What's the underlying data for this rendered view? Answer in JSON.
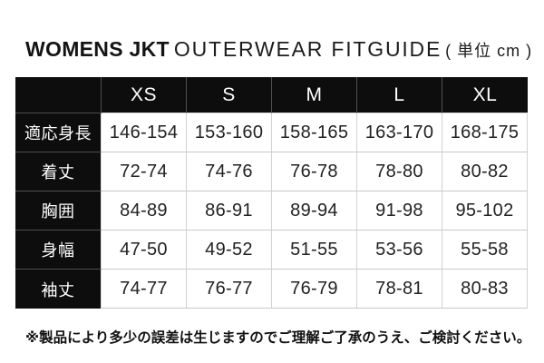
{
  "title": {
    "brand": "WOMENS JKT",
    "product": "OUTERWEAR FITGUIDE",
    "unit": "( 単位 cm )"
  },
  "chart_data": {
    "type": "table",
    "unit": "cm",
    "columns": [
      "XS",
      "S",
      "M",
      "L",
      "XL"
    ],
    "rows": [
      {
        "label": "適応身長",
        "values": [
          "146-154",
          "153-160",
          "158-165",
          "163-170",
          "168-175"
        ]
      },
      {
        "label": "着丈",
        "values": [
          "72-74",
          "74-76",
          "76-78",
          "78-80",
          "80-82"
        ]
      },
      {
        "label": "胸囲",
        "values": [
          "84-89",
          "86-91",
          "89-94",
          "91-98",
          "95-102"
        ]
      },
      {
        "label": "身幅",
        "values": [
          "47-50",
          "49-52",
          "51-55",
          "53-56",
          "55-58"
        ]
      },
      {
        "label": "袖丈",
        "values": [
          "74-77",
          "76-77",
          "76-79",
          "78-81",
          "80-83"
        ]
      }
    ]
  },
  "footnote": "※製品により多少の誤差は生じますのでご理解ご了承のうえ、ご検討ください。",
  "colors": {
    "cell_black": "#0d0d0d",
    "header_text": "#ffffff",
    "data_text": "#222222",
    "border_light": "#cccccc",
    "border_dark": "#4f4f4f",
    "title_text": "#141414"
  }
}
